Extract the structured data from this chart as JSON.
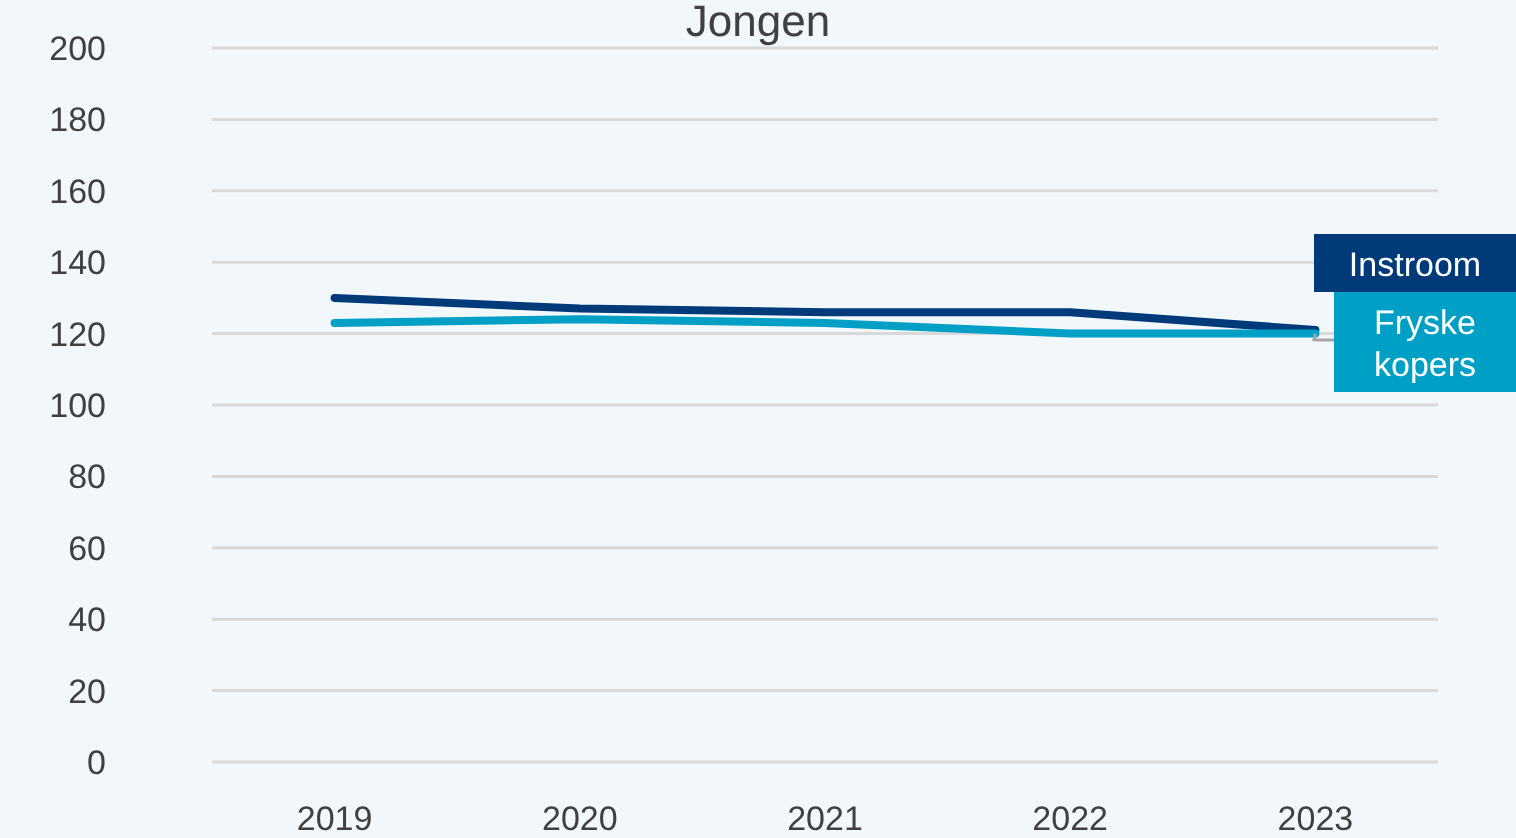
{
  "chart_data": {
    "type": "line",
    "title": "Jongen",
    "categories": [
      "2019",
      "2020",
      "2021",
      "2022",
      "2023"
    ],
    "series": [
      {
        "name": "Instroom",
        "color": "#003a78",
        "values": [
          130,
          127,
          126,
          126,
          121
        ]
      },
      {
        "name": "Fryske kopers",
        "color": "#00a0c6",
        "values": [
          123,
          124,
          123,
          120,
          120
        ]
      }
    ],
    "ylim": [
      0,
      200
    ],
    "yticks": [
      0,
      20,
      40,
      60,
      80,
      100,
      120,
      140,
      160,
      180,
      200
    ],
    "grid": "y",
    "legend": false
  }
}
